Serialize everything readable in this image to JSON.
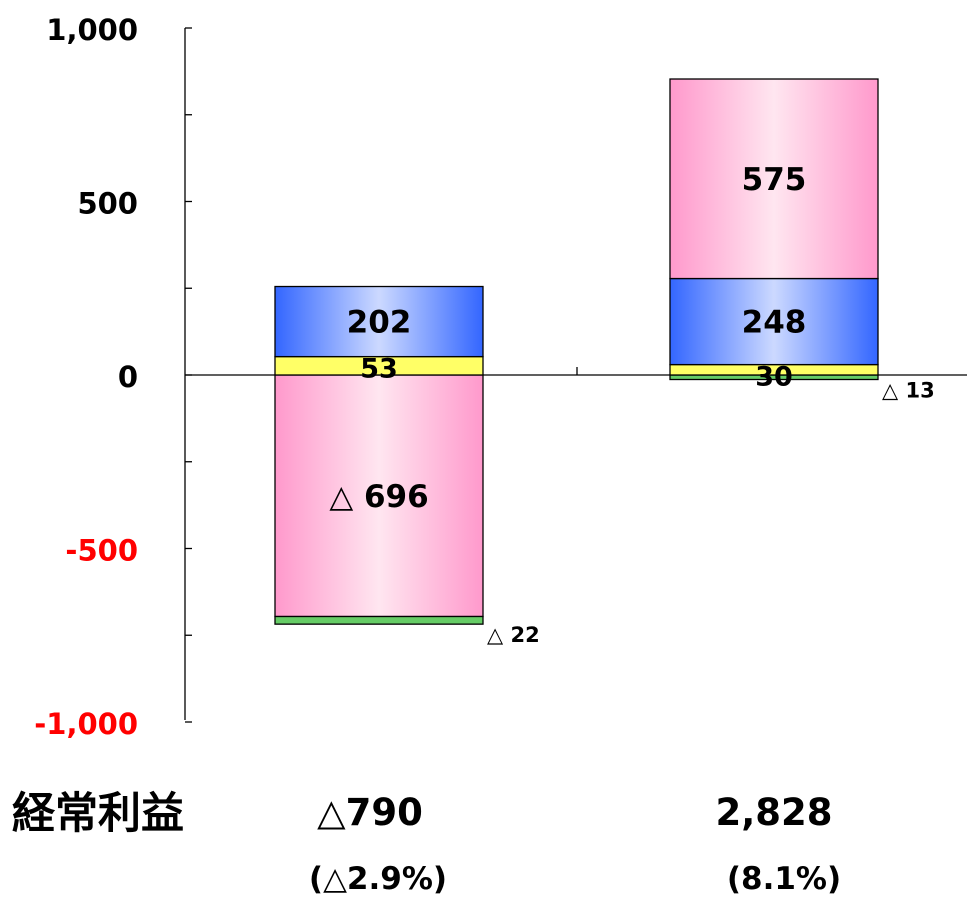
{
  "chart_data": {
    "type": "bar",
    "stacked": true,
    "ylim": [
      -1000,
      1000
    ],
    "y_ticks": [
      "1,000",
      "500",
      "0",
      "-500",
      "-1,000"
    ],
    "y_tick_values": [
      1000,
      500,
      0,
      -500,
      -1000
    ],
    "negative_tick_color": "#ff0000",
    "grid": false,
    "legend": "none",
    "bars": [
      {
        "segments": [
          {
            "value": -696,
            "label": "△ 696",
            "color": "pink"
          },
          {
            "value": -22,
            "label": "△ 22",
            "color": "green"
          },
          {
            "value": 53,
            "label": "53",
            "color": "yellow"
          },
          {
            "value": 202,
            "label": "202",
            "color": "blue"
          }
        ],
        "total": "△790",
        "ratio": "(△2.9%)"
      },
      {
        "segments": [
          {
            "value": -13,
            "label": "△ 13",
            "color": "green"
          },
          {
            "value": 30,
            "label": "30",
            "color": "yellow"
          },
          {
            "value": 248,
            "label": "248",
            "color": "blue"
          },
          {
            "value": 575,
            "label": "575",
            "color": "pink"
          }
        ],
        "total": "2,828",
        "ratio": "(8.1%)"
      }
    ],
    "row_label": "経常利益",
    "colors": {
      "pink_edge": "#ff99cc",
      "pink_mid": "#ffe6f0",
      "blue_edge": "#3366ff",
      "blue_mid": "#ccd9ff",
      "yellow": "#ffff66",
      "green": "#66cc66",
      "axis": "#000000"
    }
  }
}
